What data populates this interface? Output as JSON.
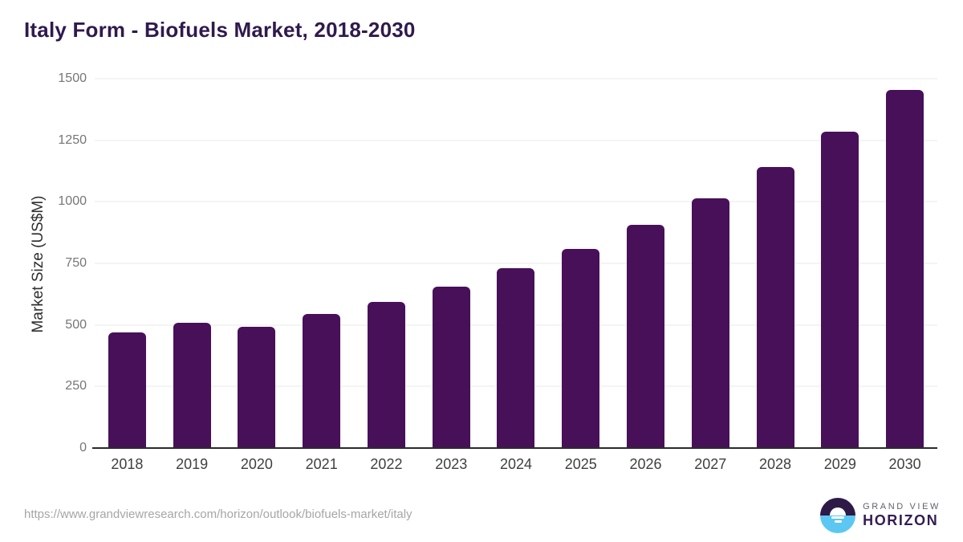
{
  "title": "Italy Form - Biofuels Market, 2018-2030",
  "chart_data": {
    "type": "bar",
    "title": "Italy Form - Biofuels Market, 2018-2030",
    "categories": [
      "2018",
      "2019",
      "2020",
      "2021",
      "2022",
      "2023",
      "2024",
      "2025",
      "2026",
      "2027",
      "2028",
      "2029",
      "2030"
    ],
    "values": [
      470,
      508,
      492,
      545,
      594,
      655,
      730,
      810,
      905,
      1015,
      1140,
      1285,
      1455
    ],
    "xlabel": "",
    "ylabel": "Market Size (US$M)",
    "ylim": [
      0,
      1500
    ],
    "yticks": [
      0,
      250,
      500,
      750,
      1000,
      1250,
      1500
    ],
    "grid": true,
    "legend": "none",
    "bar_color": "#481059"
  },
  "colors": {
    "title": "#2f1a4d",
    "bar": "#481059",
    "gridline": "#e8e8e8",
    "axis_line": "#2b2b2b",
    "y_tick_text": "#767676",
    "x_tick_text": "#3f3f3f",
    "url_text": "#a6a6a6",
    "logo_purple": "#2e1a47",
    "logo_blue": "#5cc7f2"
  },
  "footer": {
    "source_url": "https://www.grandviewresearch.com/horizon/outlook/biofuels-market/italy",
    "logo": {
      "line1": "GRAND VIEW",
      "line2": "HORIZON"
    }
  }
}
